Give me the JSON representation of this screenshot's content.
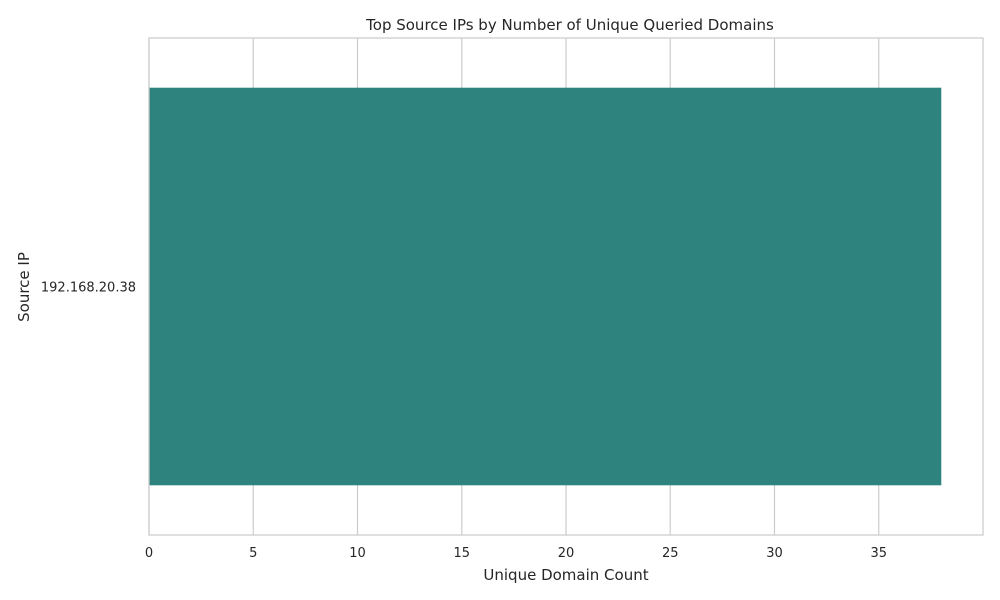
{
  "chart_data": {
    "type": "bar",
    "orientation": "horizontal",
    "title": "Top Source IPs by Number of Unique Queried Domains",
    "xlabel": "Unique Domain Count",
    "ylabel": "Source IP",
    "categories": [
      "192.168.20.38"
    ],
    "values": [
      38
    ],
    "xlim": [
      0,
      40
    ],
    "xticks": [
      0,
      5,
      10,
      15,
      20,
      25,
      30,
      35
    ],
    "grid": "vertical",
    "bar_color": "#2e837e",
    "grid_color": "#cccccc",
    "axes_edge_color": "#cccccc"
  }
}
